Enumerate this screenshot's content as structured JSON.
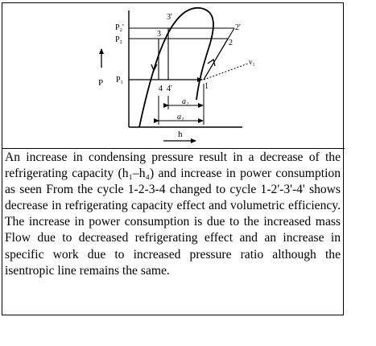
{
  "figure": {
    "pressure_labels": {
      "p2_prime": "P₂'",
      "p2": "P₂",
      "p1": "P₁"
    },
    "axis_labels": {
      "y": "P",
      "x": "h"
    },
    "state_labels": {
      "s1": "1",
      "s2": "2",
      "s2_prime": "2'",
      "s3": "3",
      "s3_prime": "3'",
      "s4": "4",
      "s4_prime": "4'",
      "v1": "v₁"
    },
    "dimension_labels": {
      "a2": "a₂",
      "a1": "a₁"
    }
  },
  "caption": "An increase in condensing pressure result in a decrease of the refrigerating capacity (h₁–h₄) and increase in power consumption as seen From the cycle 1-2-3-4 changed to cycle 1-2'-3'-4' shows decrease in refrigerating capacity effect and volumetric efficiency. The increase in power consumption is due to the increased mass Flow due to decreased refrigerating effect and an increase in specific work due to increased pressure ratio although the isentropic line remains the same."
}
